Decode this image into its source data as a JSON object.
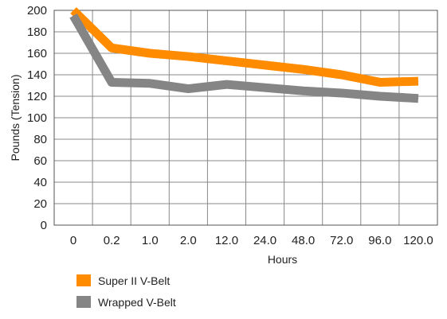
{
  "chart_data": {
    "type": "line",
    "categories": [
      "0",
      "0.2",
      "1.0",
      "2.0",
      "12.0",
      "24.0",
      "48.0",
      "72.0",
      "96.0",
      "120.0"
    ],
    "xlabel": "Hours",
    "ylabel": "Pounds (Tension)",
    "ylim": [
      0,
      200
    ],
    "yticks": [
      "0",
      "20",
      "40",
      "60",
      "80",
      "100",
      "120",
      "140",
      "160",
      "180",
      "200"
    ],
    "grid": true,
    "legend_position": "bottom-left",
    "series": [
      {
        "name": "Super II V-Belt",
        "color": "#ff8c00",
        "values": [
          200,
          165,
          160,
          157,
          153,
          149,
          145,
          140,
          133,
          134
        ]
      },
      {
        "name": "Wrapped V-Belt",
        "color": "#858585",
        "values": [
          195,
          133,
          132,
          127,
          131,
          128,
          125,
          123,
          120,
          118
        ]
      }
    ]
  }
}
